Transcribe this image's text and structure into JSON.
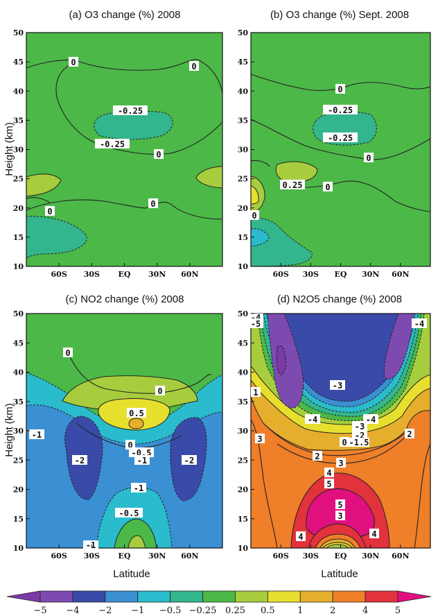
{
  "chart_data": [
    {
      "type": "contour",
      "title": "(a) O3 change (%) 2008",
      "ylabel": "Height (km)",
      "xlabel": "",
      "ylim": [
        10,
        50
      ],
      "yticks": [
        "10",
        "15",
        "20",
        "25",
        "30",
        "35",
        "40",
        "45",
        "50"
      ],
      "xticks": [
        "60S",
        "30S",
        "EQ",
        "30N",
        "60N"
      ],
      "contour_labels": [
        "0",
        "0",
        "-0.25",
        "-0.25",
        "0",
        "0",
        "0"
      ],
      "fields": [
        {
          "level": "-0.25",
          "lat": -8,
          "height": 33,
          "extent": [
            -25,
            22,
            30.5,
            35.5
          ]
        },
        {
          "level": "0.25",
          "lat": -78,
          "height": 24,
          "extent": [
            -90,
            -55,
            22.5,
            26
          ]
        },
        {
          "level": "0.25",
          "lat": 72,
          "height": 25.5,
          "extent": [
            55,
            90,
            23.5,
            27
          ]
        },
        {
          "level": "-0.25",
          "lat": -72,
          "height": 14,
          "extent": [
            -90,
            -55,
            11,
            16.5
          ]
        }
      ]
    },
    {
      "type": "contour",
      "title": "(b) O3 change (%) Sept. 2008",
      "ylabel": "",
      "xlabel": "",
      "ylim": [
        10,
        50
      ],
      "yticks": [
        "10",
        "15",
        "20",
        "25",
        "30",
        "35",
        "40",
        "45",
        "50"
      ],
      "xticks": [
        "60S",
        "30S",
        "EQ",
        "30N",
        "60N"
      ],
      "contour_labels": [
        "0",
        "-0.25",
        "-0.25",
        "0",
        "0.25",
        "0",
        "0"
      ],
      "fields": [
        {
          "level": "-0.25",
          "lat": -8,
          "height": 33,
          "extent": [
            -28,
            20,
            30.5,
            35.5
          ]
        },
        {
          "level": "0.25",
          "lat": -38,
          "height": 25.5,
          "extent": [
            -52,
            -22,
            24,
            27.5
          ]
        },
        {
          "level": "0.25",
          "lat": -86,
          "height": 22,
          "extent": [
            -90,
            -78,
            19,
            25
          ]
        },
        {
          "level": "0.5",
          "lat": -87,
          "height": 22,
          "extent": [
            -90,
            -82,
            20.5,
            23.5
          ]
        },
        {
          "level": "-0.25",
          "lat": -80,
          "height": 14,
          "extent": [
            -90,
            -60,
            10,
            19
          ]
        },
        {
          "level": "-0.5",
          "lat": -86,
          "height": 15,
          "extent": [
            -90,
            -80,
            13.5,
            16.5
          ]
        }
      ]
    },
    {
      "type": "contour",
      "title": "(c) NO2 change (%) 2008",
      "ylabel": "Height (km)",
      "xlabel": "Latitude",
      "ylim": [
        10,
        50
      ],
      "yticks": [
        "10",
        "15",
        "20",
        "25",
        "30",
        "35",
        "40",
        "45",
        "50"
      ],
      "xticks": [
        "60S",
        "30S",
        "EQ",
        "30N",
        "60N"
      ],
      "contour_labels": [
        "0",
        "0",
        "0.5",
        "0",
        "-0.5",
        "-1",
        "-1",
        "-2",
        "-2",
        "-1",
        "-0.5",
        "-1"
      ],
      "fields": [
        {
          "level": "0.25",
          "lat": 0,
          "height": 33,
          "extent": [
            -55,
            55,
            27,
            38
          ]
        },
        {
          "level": "0.5",
          "lat": 0,
          "height": 31,
          "extent": [
            -25,
            25,
            29,
            33
          ]
        },
        {
          "level": "1",
          "lat": 0,
          "height": 31,
          "extent": [
            -5,
            5,
            30.5,
            31.5
          ]
        },
        {
          "level": "-2",
          "lat": -54,
          "height": 21.5,
          "extent": [
            -70,
            -38,
            16.5,
            26
          ]
        },
        {
          "level": "-2",
          "lat": 56,
          "height": 21.5,
          "extent": [
            40,
            72,
            16.5,
            26
          ]
        },
        {
          "level": "-0.5",
          "lat": 0,
          "height": 13,
          "extent": [
            -25,
            25,
            10,
            17
          ]
        },
        {
          "level": "0.25",
          "lat": 0,
          "height": 11,
          "extent": [
            -15,
            15,
            10,
            13
          ]
        }
      ]
    },
    {
      "type": "contour",
      "title": "(d) N2O5 change (%) 2008",
      "ylabel": "",
      "xlabel": "Latitude",
      "ylim": [
        10,
        50
      ],
      "yticks": [
        "10",
        "15",
        "20",
        "25",
        "30",
        "35",
        "40",
        "45",
        "50"
      ],
      "xticks": [
        "60S",
        "30S",
        "EQ",
        "30N",
        "60N"
      ],
      "contour_labels": [
        "-4",
        "-5",
        "-4",
        "1",
        "-3",
        "-4",
        "-4",
        "3",
        "-3",
        "-2",
        "-1.5",
        "0",
        "2",
        "3",
        "2",
        "4",
        "5",
        "5",
        "3",
        "4",
        "4"
      ],
      "fields": [
        {
          "level": "-4",
          "lat": -57,
          "height": 42,
          "extent": [
            -70,
            -40,
            32,
            50
          ]
        },
        {
          "level": "-5",
          "lat": -58,
          "height": 42,
          "extent": [
            -62,
            -53,
            38,
            46
          ]
        },
        {
          "level": "-4",
          "lat": 62,
          "height": 43,
          "extent": [
            48,
            75,
            34,
            50
          ]
        },
        {
          "level": "4",
          "lat": 0,
          "height": 17,
          "extent": [
            -35,
            35,
            10,
            24
          ]
        },
        {
          "level": "5",
          "lat": 0,
          "height": 17,
          "extent": [
            -22,
            22,
            13.5,
            21
          ]
        }
      ]
    }
  ],
  "colorbar": {
    "labels": [
      "−5",
      "−4",
      "−2",
      "−1",
      "−0.5",
      "−0.25",
      "0.25",
      "0.5",
      "1",
      "2",
      "4",
      "5"
    ],
    "colors": [
      "#7a3aa8",
      "#7d4bb0",
      "#3a4aa8",
      "#3b8fd3",
      "#2abbcc",
      "#33b58d",
      "#4cb848",
      "#a7cd3e",
      "#e7df2e",
      "#e6ae2d",
      "#ef7f29",
      "#e2323c",
      "#e0107f"
    ]
  }
}
